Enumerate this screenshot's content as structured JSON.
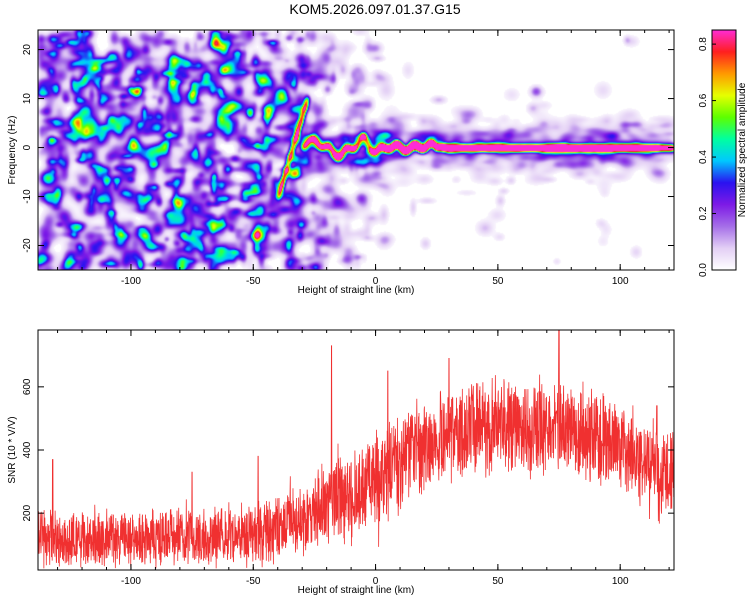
{
  "title": "KOM5.2026.097.01.37.G15",
  "chart_data": [
    {
      "type": "heatmap",
      "name": "spectrogram",
      "xlabel": "Height of straight line (km)",
      "ylabel": "Frequency (Hz)",
      "xlim": [
        -138,
        122
      ],
      "ylim": [
        -25,
        24
      ],
      "xticks": [
        -100,
        -50,
        0,
        50,
        100
      ],
      "xtick_labels": [
        "-100",
        "-50",
        "0",
        "50",
        "100"
      ],
      "yticks": [
        -20,
        -10,
        0,
        10,
        20
      ],
      "ytick_labels": [
        "-20",
        "-10",
        "0",
        "10",
        "20"
      ],
      "colorbar": {
        "label": "Normalized spectral amplitude",
        "range": [
          0.0,
          0.85
        ],
        "ticks": [
          0.0,
          0.2,
          0.4,
          0.6,
          0.8
        ],
        "tick_labels": [
          "0.0",
          "0.2",
          "0.4",
          "0.6",
          "0.8"
        ],
        "colormap": [
          "#ffffff",
          "#e3cff5",
          "#a56ee8",
          "#7d1ae6",
          "#2a12f0",
          "#00c8ff",
          "#00ffa0",
          "#5dff00",
          "#e6ff00",
          "#ff9900",
          "#ff1f1f",
          "#ff2bd6"
        ]
      },
      "signal_track": {
        "description_free_values": true,
        "x": [
          -30,
          -25,
          -20,
          -15,
          -10,
          -5,
          0,
          5,
          10,
          15,
          20,
          30,
          40,
          50,
          60,
          70,
          80,
          90,
          100,
          110,
          120
        ],
        "freq": [
          0.8,
          1.5,
          0.0,
          -1.5,
          0.0,
          2.0,
          -1.0,
          0.5,
          0.0,
          0.0,
          0.5,
          0.0,
          0.0,
          0.0,
          0.0,
          0.0,
          0.0,
          0.0,
          0.0,
          0.0,
          0.0
        ],
        "amplitude": [
          0.3,
          0.35,
          0.45,
          0.55,
          0.45,
          0.5,
          0.45,
          0.7,
          0.8,
          0.75,
          0.7,
          0.55,
          0.55,
          0.6,
          0.55,
          0.6,
          0.7,
          0.65,
          0.6,
          0.55,
          0.5
        ]
      },
      "noise_region_x": [
        -138,
        -30
      ]
    },
    {
      "type": "line",
      "name": "snr",
      "xlabel": "Height of straight line (km)",
      "ylabel": "SNR (10 * V/V)",
      "xlim": [
        -138,
        122
      ],
      "ylim": [
        20,
        780
      ],
      "xticks": [
        -100,
        -50,
        0,
        50,
        100
      ],
      "xtick_labels": [
        "-100",
        "-50",
        "0",
        "50",
        "100"
      ],
      "yticks": [
        200,
        400,
        600
      ],
      "ytick_labels": [
        "200",
        "400",
        "600"
      ],
      "color": "#f03030",
      "series": [
        {
          "name": "SNR",
          "x": [
            -138,
            -130,
            -120,
            -110,
            -100,
            -90,
            -80,
            -70,
            -60,
            -50,
            -40,
            -30,
            -20,
            -10,
            0,
            10,
            20,
            30,
            40,
            50,
            60,
            70,
            80,
            90,
            100,
            110,
            122
          ],
          "y_mean": [
            120,
            115,
            120,
            125,
            115,
            120,
            130,
            125,
            130,
            135,
            150,
            190,
            230,
            260,
            300,
            370,
            420,
            440,
            470,
            480,
            470,
            480,
            460,
            440,
            420,
            360,
            310
          ],
          "y_spread": [
            70,
            70,
            70,
            70,
            70,
            70,
            70,
            70,
            70,
            75,
            80,
            90,
            100,
            110,
            115,
            120,
            110,
            110,
            110,
            110,
            110,
            115,
            110,
            110,
            110,
            110,
            110
          ],
          "peaks": [
            [
              -132,
              370
            ],
            [
              -18,
              730
            ],
            [
              -75,
              330
            ],
            [
              75,
              780
            ],
            [
              5,
              650
            ],
            [
              30,
              690
            ],
            [
              115,
              540
            ],
            [
              -48,
              380
            ]
          ]
        }
      ]
    }
  ]
}
